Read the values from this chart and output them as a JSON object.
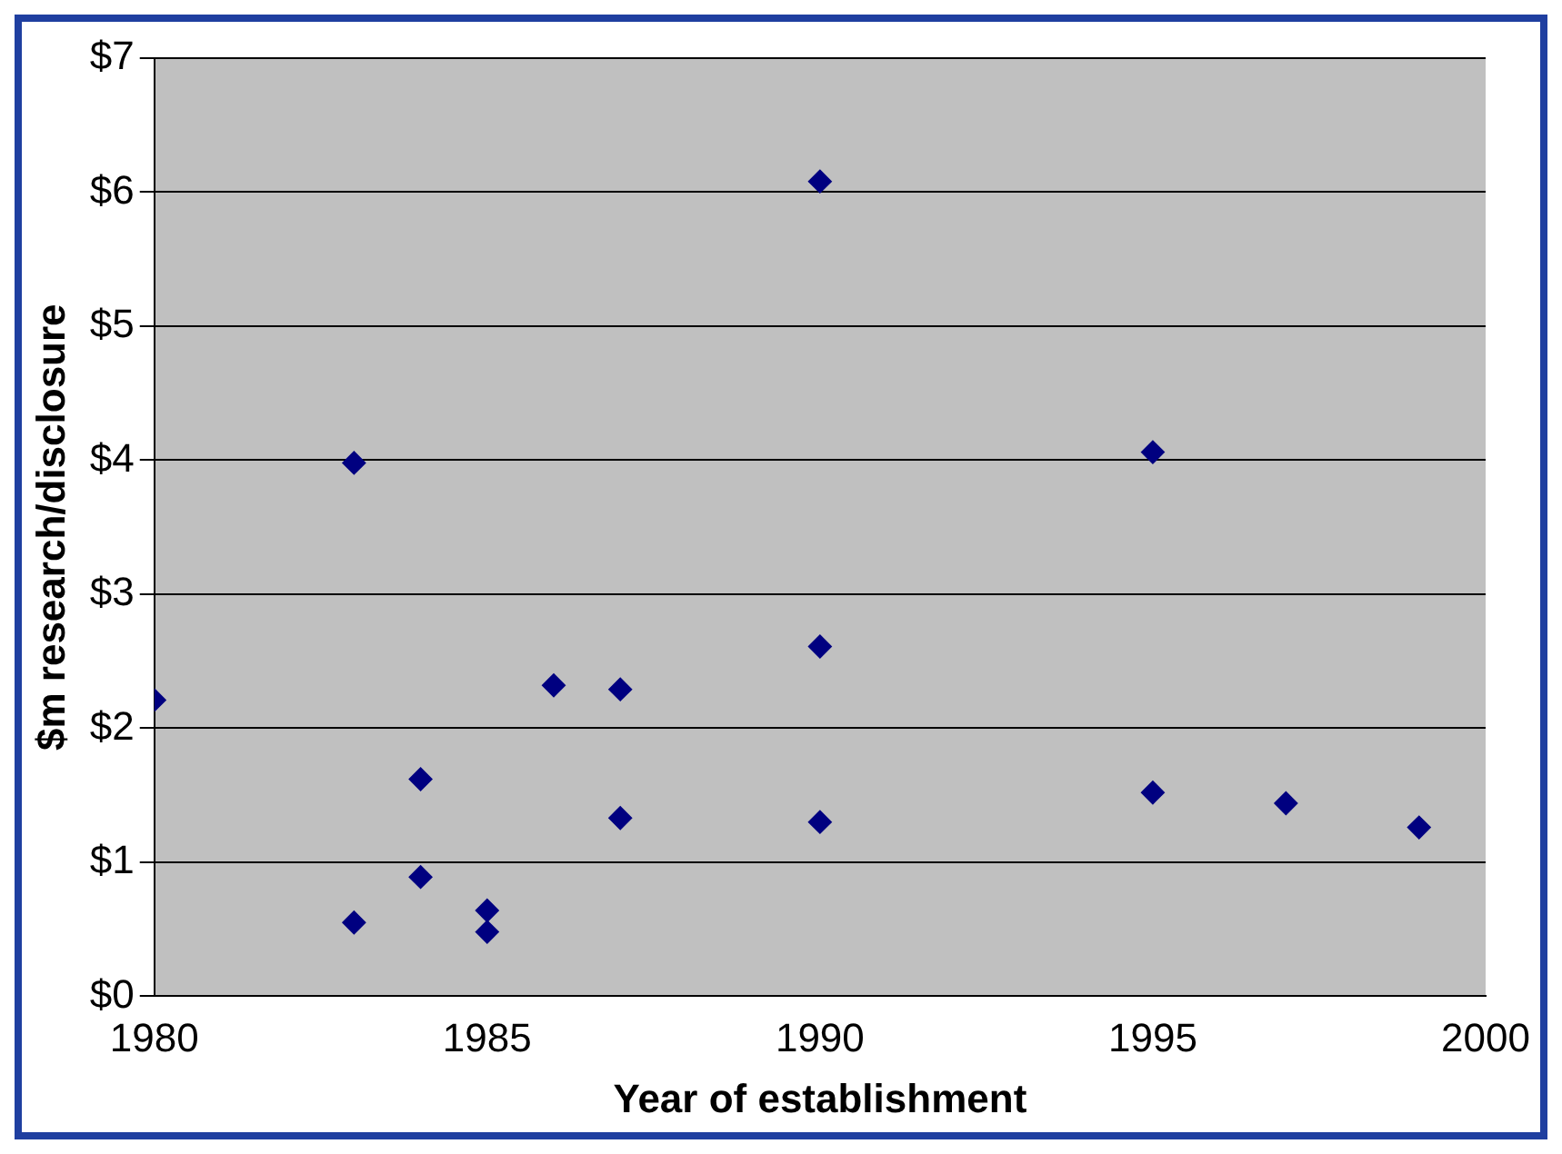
{
  "chart_data": {
    "type": "scatter",
    "xlabel": "Year of establishment",
    "ylabel": "$m research/disclosure",
    "x": [
      1980,
      1983,
      1983,
      1984,
      1984,
      1985,
      1985,
      1986,
      1987,
      1987,
      1990,
      1990,
      1990,
      1995,
      1995,
      1997,
      1999
    ],
    "series": [
      {
        "color": "#000080",
        "values": [
          2.21,
          3.98,
          0.55,
          1.62,
          0.89,
          0.64,
          0.48,
          2.32,
          2.29,
          1.33,
          6.08,
          2.61,
          1.3,
          4.06,
          1.52,
          1.44,
          1.26
        ]
      }
    ],
    "xlim": [
      1980,
      2000
    ],
    "xticks": [
      1980,
      1985,
      1990,
      1995,
      2000
    ],
    "ylim": [
      0,
      7
    ],
    "yticks": [
      {
        "value": 0,
        "label": "$0"
      },
      {
        "value": 1,
        "label": "$1"
      },
      {
        "value": 2,
        "label": "$2"
      },
      {
        "value": 3,
        "label": "$3"
      },
      {
        "value": 4,
        "label": "$4"
      },
      {
        "value": 5,
        "label": "$5"
      },
      {
        "value": 6,
        "label": "$6"
      },
      {
        "value": 7,
        "label": "$7"
      }
    ],
    "grid": "y",
    "marker": "diamond",
    "legend": false
  }
}
